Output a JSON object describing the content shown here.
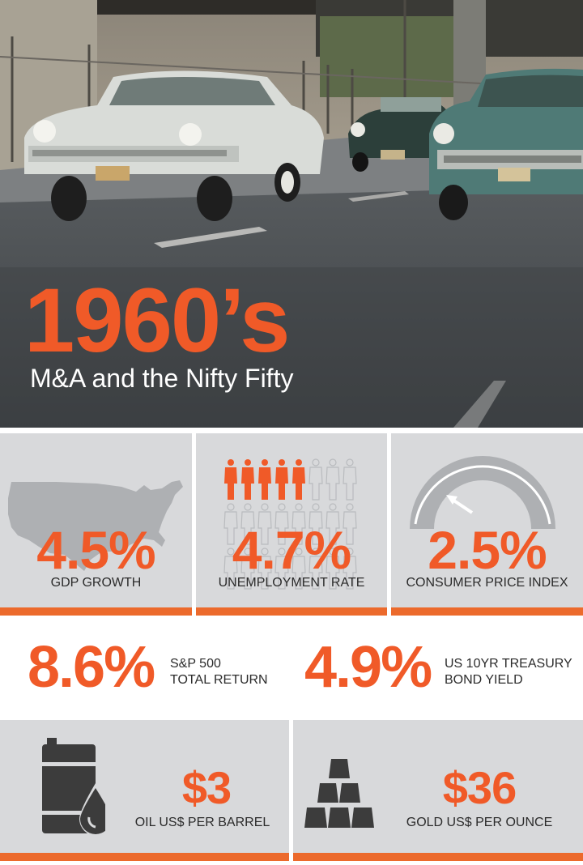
{
  "hero": {
    "title": "1960’s",
    "subtitle": "M&A and the Nifty Fifty"
  },
  "stats": {
    "gdp": {
      "value": "4.5%",
      "label": "GDP GROWTH",
      "icon": "us-map-icon"
    },
    "unemployment": {
      "value": "4.7%",
      "label": "UNEMPLOYMENT RATE",
      "icon": "people-icon",
      "highlighted_people": 5,
      "people_per_row": 8
    },
    "cpi": {
      "value": "2.5%",
      "label": "CONSUMER PRICE INDEX",
      "icon": "gauge-icon"
    },
    "sp500": {
      "value": "8.6%",
      "label_line1": "S&P 500",
      "label_line2": "TOTAL RETURN"
    },
    "treasury": {
      "value": "4.9%",
      "label_line1": "US 10YR TREASURY",
      "label_line2": "BOND YIELD"
    },
    "oil": {
      "value": "$3",
      "label": "OIL US$ PER BARREL",
      "icon": "oil-barrel-icon"
    },
    "gold": {
      "value": "$36",
      "label": "GOLD US$ PER OUNCE",
      "icon": "gold-bars-icon"
    }
  },
  "colors": {
    "accent": "#f05a28",
    "bar": "#ec6a2c",
    "tile": "#d8d9db",
    "text": "#2b2b2b",
    "icon_dark": "#3c3c3c"
  }
}
